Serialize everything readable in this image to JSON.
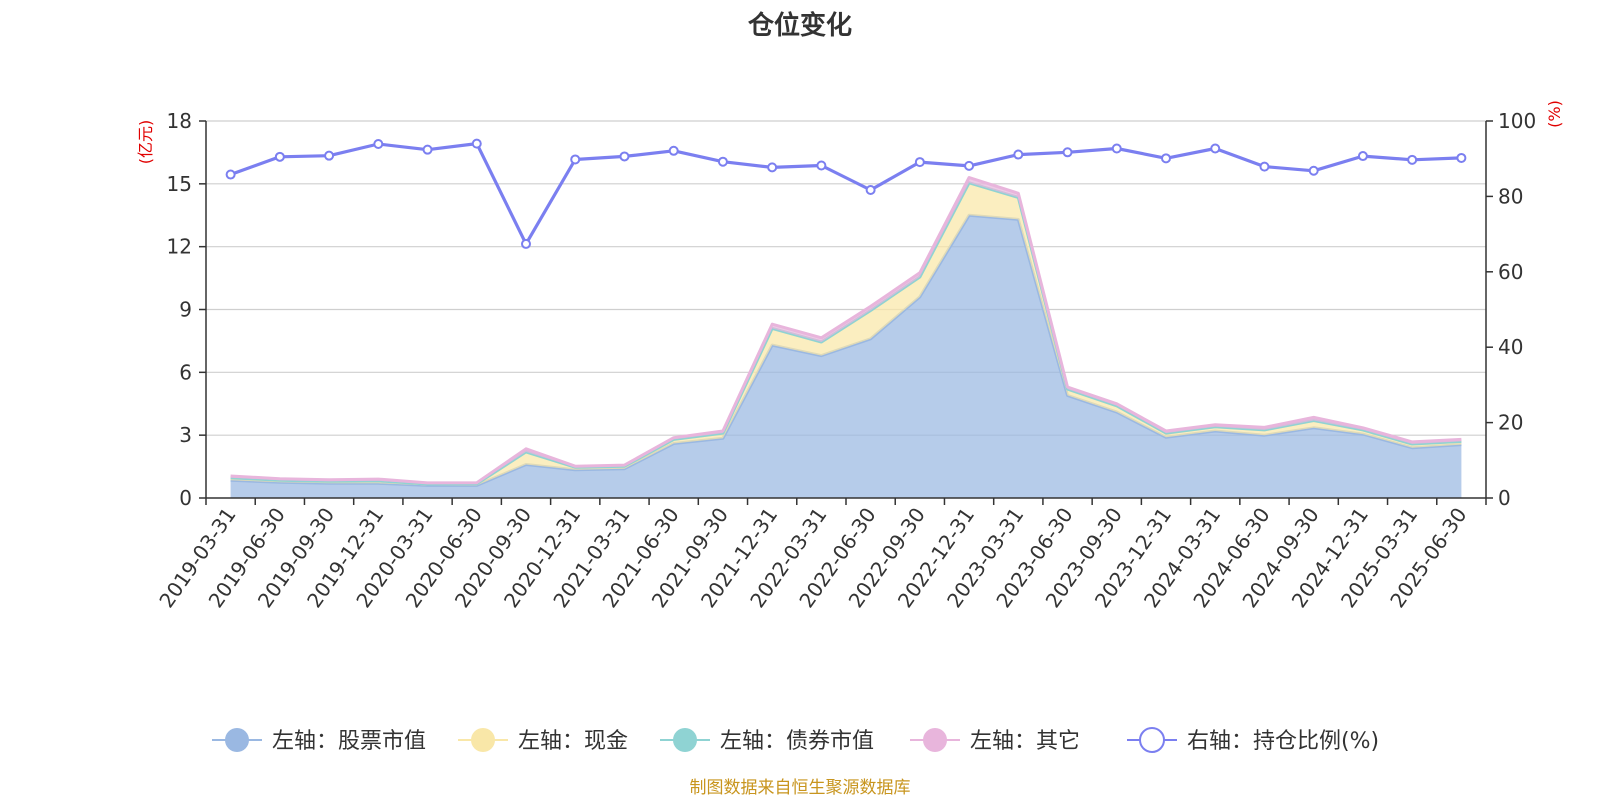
{
  "chart_data": {
    "type": "area",
    "title": "仓位变化",
    "categories": [
      "2019-03-31",
      "2019-06-30",
      "2019-09-30",
      "2019-12-31",
      "2020-03-31",
      "2020-06-30",
      "2020-09-30",
      "2020-12-31",
      "2021-03-31",
      "2021-06-30",
      "2021-09-30",
      "2021-12-31",
      "2022-03-31",
      "2022-06-30",
      "2022-09-30",
      "2022-12-31",
      "2023-03-31",
      "2023-06-30",
      "2023-09-30",
      "2023-12-31",
      "2024-03-31",
      "2024-06-30",
      "2024-09-30",
      "2024-12-31",
      "2025-03-31",
      "2025-06-30"
    ],
    "left_axis": {
      "unit": "(亿元)",
      "ylim": [
        0,
        18
      ],
      "ticks": [
        0,
        3,
        6,
        9,
        12,
        15,
        18
      ]
    },
    "right_axis": {
      "unit": "(%)",
      "ylim": [
        0,
        100
      ],
      "ticks": [
        0,
        20,
        40,
        60,
        80,
        100
      ]
    },
    "series": [
      {
        "name": "左轴：股票市值",
        "axis": "left",
        "stacked": true,
        "color": "#9ab8e2",
        "values": [
          0.85,
          0.75,
          0.7,
          0.7,
          0.6,
          0.6,
          1.6,
          1.35,
          1.4,
          2.6,
          2.85,
          7.3,
          6.8,
          7.6,
          9.6,
          13.5,
          13.3,
          4.9,
          4.1,
          2.9,
          3.2,
          3.0,
          3.35,
          3.05,
          2.4,
          2.55
        ]
      },
      {
        "name": "左轴：现金",
        "axis": "left",
        "stacked": true,
        "color": "#f9e7a8",
        "values": [
          0.12,
          0.1,
          0.1,
          0.12,
          0.07,
          0.08,
          0.6,
          0.12,
          0.12,
          0.2,
          0.25,
          0.8,
          0.65,
          1.35,
          0.95,
          1.55,
          1.05,
          0.3,
          0.3,
          0.2,
          0.2,
          0.25,
          0.35,
          0.2,
          0.18,
          0.15
        ]
      },
      {
        "name": "左轴：债券市值",
        "axis": "left",
        "stacked": true,
        "color": "#8fd3d3",
        "values": [
          0,
          0,
          0,
          0,
          0,
          0,
          0,
          0,
          0,
          0,
          0,
          0,
          0,
          0,
          0,
          0,
          0,
          0,
          0,
          0,
          0,
          0,
          0,
          0,
          0,
          0
        ]
      },
      {
        "name": "左轴：其它",
        "axis": "left",
        "stacked": true,
        "color": "#e8b5dc",
        "values": [
          0.08,
          0.07,
          0.07,
          0.08,
          0.05,
          0.05,
          0.15,
          0.05,
          0.05,
          0.08,
          0.1,
          0.2,
          0.2,
          0.2,
          0.2,
          0.25,
          0.2,
          0.1,
          0.1,
          0.1,
          0.1,
          0.12,
          0.15,
          0.1,
          0.1,
          0.1
        ]
      },
      {
        "name": "右轴：持仓比例(%)",
        "axis": "right",
        "type": "line",
        "color": "#7b7ff0",
        "values": [
          85.8,
          90.5,
          90.8,
          93.9,
          92.4,
          94.0,
          67.4,
          89.8,
          90.6,
          92.1,
          89.2,
          87.7,
          88.2,
          81.7,
          89.1,
          88.1,
          91.1,
          91.7,
          92.7,
          90.1,
          92.7,
          87.9,
          86.8,
          90.7,
          89.7,
          90.2
        ]
      }
    ],
    "legend": {
      "placement": "bottom"
    },
    "grid": true
  },
  "footer": {
    "source": "制图数据来自恒生聚源数据库"
  }
}
